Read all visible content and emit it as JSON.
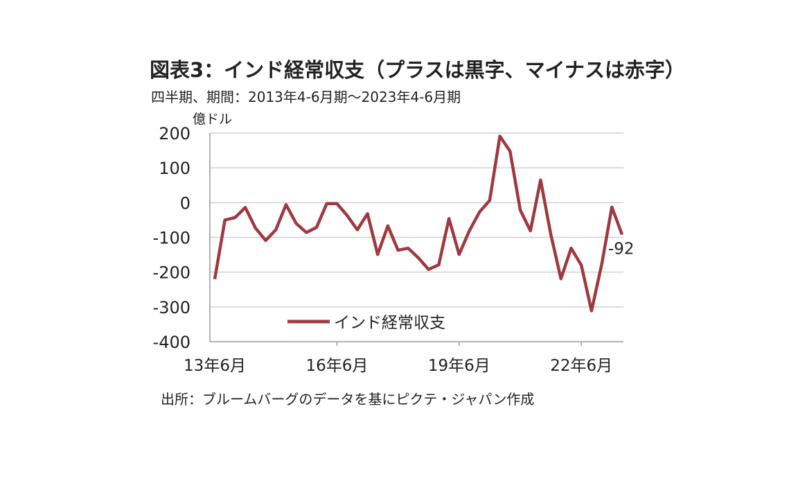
{
  "title": "図表3：インド経常収支（プラスは黒字、マイナスは赤字）",
  "subtitle": "四半期、期間：2013年4-6月期～2023年4-6月期",
  "source": "出所：ブルームバーグのデータを基にピクテ・ジャパン作成",
  "colors": {
    "line": "#a0393f",
    "grid": "#d0d0d0",
    "axis": "#999999"
  },
  "chart_data": {
    "type": "line",
    "title": "",
    "ylabel": "億ドル",
    "xlabel": "",
    "ylim": [
      -400,
      200
    ],
    "yticks": [
      "200",
      "100",
      "0",
      "-100",
      "-200",
      "-300",
      "-400"
    ],
    "ytick_values": [
      200,
      100,
      0,
      -100,
      -200,
      -300,
      -400
    ],
    "xtick_labels": [
      "13年6月",
      "16年6月",
      "19年6月",
      "22年6月"
    ],
    "xtick_index": [
      0,
      12,
      24,
      36
    ],
    "grid": true,
    "legend_position": "bottom-center",
    "end_label": "-92",
    "x": [
      "13/6",
      "13/9",
      "13/12",
      "14/3",
      "14/6",
      "14/9",
      "14/12",
      "15/3",
      "15/6",
      "15/9",
      "15/12",
      "16/3",
      "16/6",
      "16/9",
      "16/12",
      "17/3",
      "17/6",
      "17/9",
      "17/12",
      "18/3",
      "18/6",
      "18/9",
      "18/12",
      "19/3",
      "19/6",
      "19/9",
      "19/12",
      "20/3",
      "20/6",
      "20/9",
      "20/12",
      "21/3",
      "21/6",
      "21/9",
      "21/12",
      "22/3",
      "22/6",
      "22/9",
      "22/12",
      "23/3",
      "23/6"
    ],
    "series": [
      {
        "name": "インド経常収支",
        "values": [
          -220,
          -50,
          -43,
          -14,
          -73,
          -109,
          -78,
          -6,
          -60,
          -86,
          -71,
          -3,
          -3,
          -37,
          -78,
          -32,
          -149,
          -67,
          -137,
          -131,
          -159,
          -192,
          -179,
          -46,
          -149,
          -81,
          -27,
          6,
          191,
          148,
          -21,
          -81,
          65,
          -91,
          -219,
          -131,
          -180,
          -311,
          -178,
          -13,
          -92
        ]
      }
    ]
  }
}
